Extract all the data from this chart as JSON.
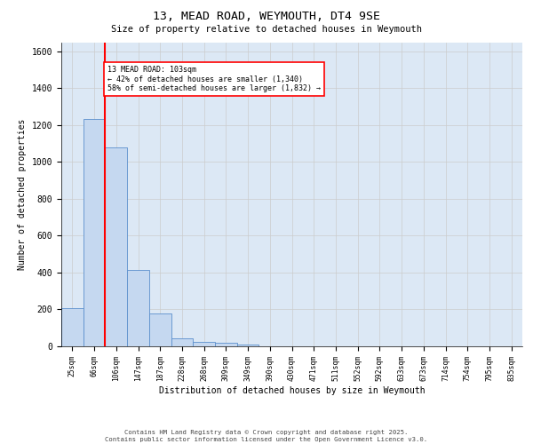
{
  "title": "13, MEAD ROAD, WEYMOUTH, DT4 9SE",
  "subtitle": "Size of property relative to detached houses in Weymouth",
  "xlabel": "Distribution of detached houses by size in Weymouth",
  "ylabel": "Number of detached properties",
  "categories": [
    "25sqm",
    "66sqm",
    "106sqm",
    "147sqm",
    "187sqm",
    "228sqm",
    "268sqm",
    "309sqm",
    "349sqm",
    "390sqm",
    "430sqm",
    "471sqm",
    "511sqm",
    "552sqm",
    "592sqm",
    "633sqm",
    "673sqm",
    "714sqm",
    "754sqm",
    "795sqm",
    "835sqm"
  ],
  "values": [
    205,
    1235,
    1080,
    415,
    178,
    45,
    25,
    18,
    12,
    0,
    0,
    0,
    0,
    0,
    0,
    0,
    0,
    0,
    0,
    0,
    0
  ],
  "bar_color": "#c5d8f0",
  "bar_edge_color": "#5b8fcc",
  "vline_x": 2,
  "vline_color": "red",
  "annotation_text": "13 MEAD ROAD: 103sqm\n← 42% of detached houses are smaller (1,340)\n58% of semi-detached houses are larger (1,832) →",
  "annotation_box_color": "white",
  "annotation_box_edge": "red",
  "ylim": [
    0,
    1650
  ],
  "yticks": [
    0,
    200,
    400,
    600,
    800,
    1000,
    1200,
    1400,
    1600
  ],
  "grid_color": "#cccccc",
  "background_color": "#dce8f5",
  "footer_line1": "Contains HM Land Registry data © Crown copyright and database right 2025.",
  "footer_line2": "Contains public sector information licensed under the Open Government Licence v3.0."
}
